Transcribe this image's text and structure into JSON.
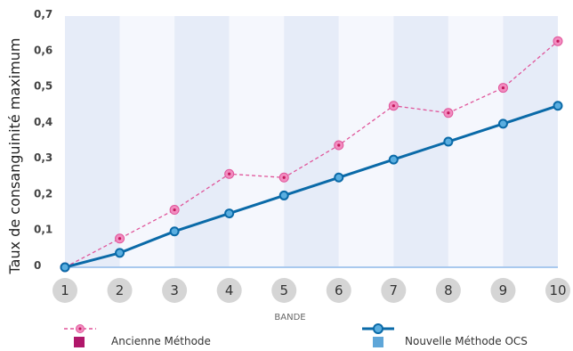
{
  "chart_data": {
    "type": "line",
    "title": "",
    "xlabel": "BANDE",
    "ylabel": "Taux de consanguinité maximum",
    "categories": [
      "1",
      "2",
      "3",
      "4",
      "5",
      "6",
      "7",
      "8",
      "9",
      "10"
    ],
    "yticks": [
      "0",
      "0,1",
      "0,2",
      "0,3",
      "0,4",
      "0,5",
      "0,6",
      "0,7"
    ],
    "ylim": [
      0,
      0.7
    ],
    "grid": false,
    "legend_position": "bottom",
    "series": [
      {
        "name": "Ancienne Méthode",
        "values": [
          0.0,
          0.08,
          0.16,
          0.26,
          0.25,
          0.34,
          0.45,
          0.43,
          0.5,
          0.63
        ],
        "color": "#e0559a",
        "marker_color": "#c2185b",
        "swatch_color": "#b0176a",
        "style": "dashed"
      },
      {
        "name": "Nouvelle Méthode OCS",
        "values": [
          0.0,
          0.04,
          0.1,
          0.15,
          0.2,
          0.25,
          0.3,
          0.35,
          0.4,
          0.45
        ],
        "color": "#0a6aa8",
        "marker_color": "#5aaee0",
        "swatch_color": "#5fa6d8",
        "style": "solid"
      }
    ]
  }
}
